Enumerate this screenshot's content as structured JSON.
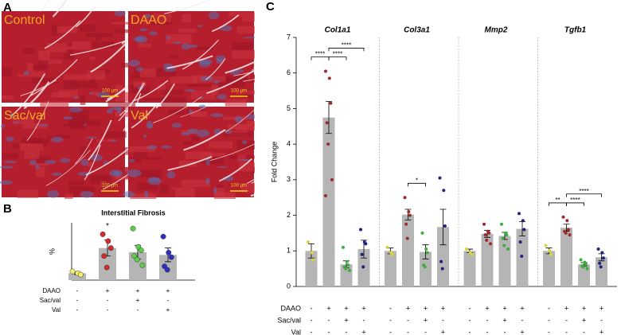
{
  "panel_labels": [
    "A",
    "B",
    "C"
  ],
  "histology": {
    "panels": [
      {
        "label": "Control",
        "scale_bar": "100 µm"
      },
      {
        "label": "DAAO",
        "scale_bar": "100 µm"
      },
      {
        "label": "Sac/val",
        "scale_bar": "100 µm"
      },
      {
        "label": "Val",
        "scale_bar": "100 µm"
      }
    ]
  },
  "chart_data": [
    {
      "type": "bar",
      "title": "Interstitial Fibrosis",
      "y_label": "%",
      "ylim": [
        0,
        2.5
      ],
      "bar_color": "#b5b5b5",
      "point_colors": [
        "#f2ef6a",
        "#d42a2a",
        "#5ecf4a",
        "#2e2ec0"
      ],
      "groups": [
        {
          "values": [
            0.3,
            1.4,
            1.22,
            1.1
          ],
          "errors": [
            0.05,
            0.35,
            0.3,
            0.3
          ],
          "points": [
            [
              0.38,
              0.3,
              0.24
            ],
            [
              2.0,
              1.7,
              1.4,
              1.05,
              0.55
            ],
            [
              2.25,
              1.45,
              1.3,
              1.05,
              0.9,
              0.65
            ],
            [
              1.9,
              1.2,
              1.0,
              0.6,
              0.45
            ]
          ],
          "annotations": [
            {
              "label": "*",
              "bar": 1
            }
          ]
        }
      ],
      "conditions": [
        {
          "label": "DAAO",
          "signs": [
            "-",
            "+",
            "+",
            "+"
          ]
        },
        {
          "label": "Sac/val",
          "signs": [
            "-",
            "-",
            "+",
            "-"
          ]
        },
        {
          "label": "Val",
          "signs": [
            "-",
            "-",
            "-",
            "+"
          ]
        }
      ]
    },
    {
      "type": "bar",
      "y_label": "Fold Change",
      "ylim": [
        0,
        7
      ],
      "yticks": [
        0,
        1,
        2,
        3,
        4,
        5,
        6,
        7
      ],
      "bar_color": "#b5b5b5",
      "point_colors": [
        "#d8d43a",
        "#9e2a2a",
        "#3fae3f",
        "#23237e"
      ],
      "groups": [
        {
          "name": "Col1a1",
          "values": [
            1.0,
            4.75,
            0.62,
            1.05
          ],
          "errors": [
            0.2,
            0.45,
            0.1,
            0.25
          ],
          "points": [
            [
              1.25,
              0.95,
              0.75
            ],
            [
              6.05,
              5.85,
              5.15,
              4.6,
              4.0,
              3.0,
              2.55
            ],
            [
              1.1,
              0.7,
              0.6,
              0.55,
              0.5,
              0.45
            ],
            [
              1.6,
              1.25,
              1.2,
              0.9,
              0.55
            ]
          ],
          "brackets": [
            {
              "label": "****",
              "from": 0,
              "to": 1
            },
            {
              "label": "****",
              "from": 1,
              "to": 2
            },
            {
              "label": "****",
              "from": 1,
              "to": 3
            }
          ]
        },
        {
          "name": "Col3a1",
          "values": [
            1.0,
            2.02,
            0.97,
            1.67
          ],
          "errors": [
            0.08,
            0.15,
            0.2,
            0.5
          ],
          "points": [
            [
              1.1,
              0.95,
              0.9
            ],
            [
              2.5,
              2.1,
              2.0,
              1.75,
              1.35
            ],
            [
              1.5,
              1.05,
              0.95,
              0.6,
              0.55
            ],
            [
              3.05,
              2.7,
              1.7,
              0.7,
              0.5
            ]
          ],
          "brackets": [
            {
              "label": "*",
              "from": 1,
              "to": 2
            }
          ]
        },
        {
          "name": "Mmp2",
          "values": [
            1.0,
            1.48,
            1.42,
            1.62
          ],
          "errors": [
            0.05,
            0.1,
            0.1,
            0.2
          ],
          "points": [
            [
              1.05,
              0.95,
              0.9
            ],
            [
              1.75,
              1.55,
              1.5,
              1.45,
              1.3,
              1.2
            ],
            [
              1.75,
              1.5,
              1.45,
              1.35,
              1.15,
              1.05
            ],
            [
              2.05,
              1.85,
              1.6,
              1.25,
              0.85
            ]
          ]
        },
        {
          "name": "Tgfb1",
          "values": [
            1.0,
            1.65,
            0.62,
            0.82
          ],
          "errors": [
            0.08,
            0.1,
            0.05,
            0.1
          ],
          "points": [
            [
              1.15,
              1.0,
              0.9
            ],
            [
              1.95,
              1.85,
              1.6,
              1.55,
              1.5,
              1.45
            ],
            [
              0.75,
              0.68,
              0.62,
              0.58,
              0.55,
              0.5
            ],
            [
              1.05,
              0.95,
              0.8,
              0.65,
              0.55
            ]
          ],
          "brackets": [
            {
              "label": "**",
              "from": 0,
              "to": 1
            },
            {
              "label": "****",
              "from": 1,
              "to": 2
            },
            {
              "label": "****",
              "from": 1,
              "to": 3
            }
          ]
        }
      ],
      "conditions": [
        {
          "label": "DAAO",
          "signs": [
            "-",
            "+",
            "+",
            "+"
          ]
        },
        {
          "label": "Sac/val",
          "signs": [
            "-",
            "-",
            "+",
            "-"
          ]
        },
        {
          "label": "Val",
          "signs": [
            "-",
            "-",
            "-",
            "+"
          ]
        }
      ]
    }
  ]
}
